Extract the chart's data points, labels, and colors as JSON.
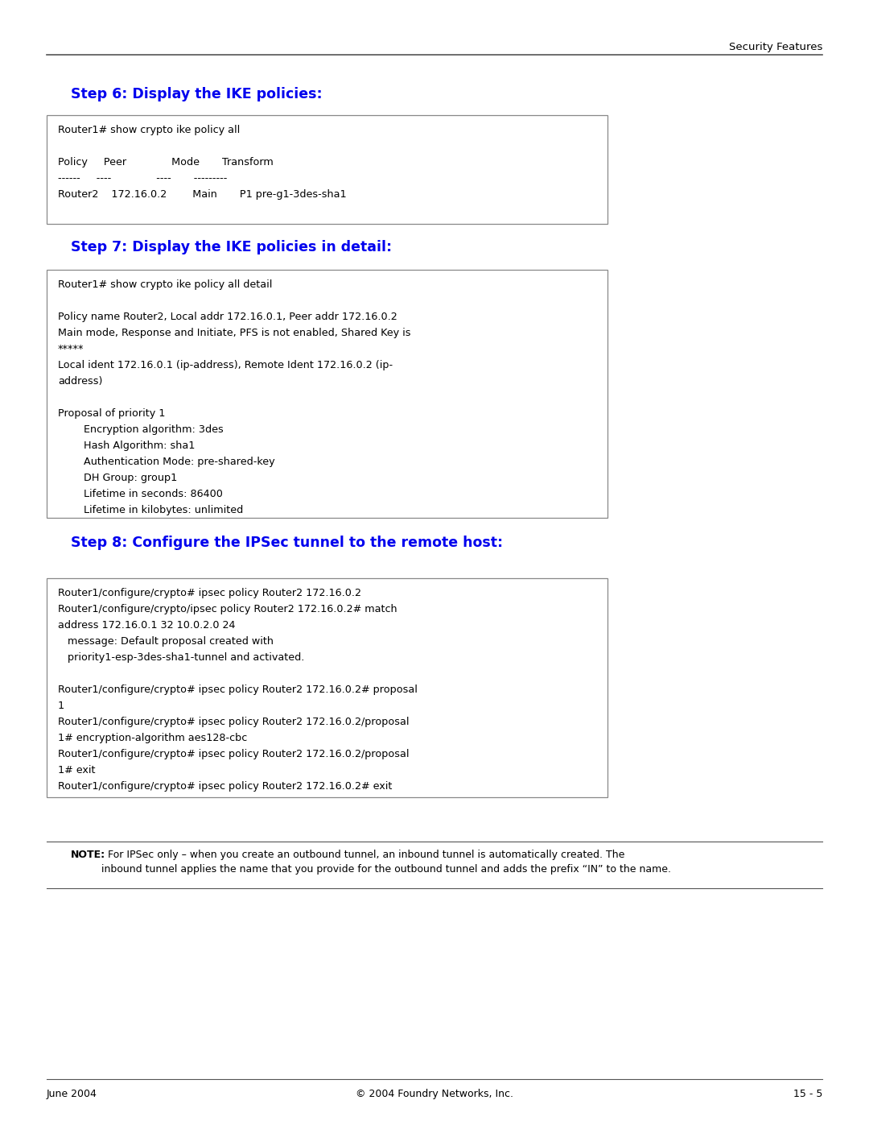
{
  "header_right": "Security Features",
  "step6_title": "Step 6: Display the IKE policies:",
  "step7_title": "Step 7: Display the IKE policies in detail:",
  "step8_title": "Step 8: Configure the IPSec tunnel to the remote host:",
  "step6_code": "Router1# show crypto ike policy all\n\nPolicy     Peer              Mode       Transform\n------     ----              ----       ---------\nRouter2    172.16.0.2        Main       P1 pre-g1-3des-sha1",
  "step7_code": "Router1# show crypto ike policy all detail\n\nPolicy name Router2, Local addr 172.16.0.1, Peer addr 172.16.0.2\nMain mode, Response and Initiate, PFS is not enabled, Shared Key is\n*****\nLocal ident 172.16.0.1 (ip-address), Remote Ident 172.16.0.2 (ip-\naddress)\n\nProposal of priority 1\n        Encryption algorithm: 3des\n        Hash Algorithm: sha1\n        Authentication Mode: pre-shared-key\n        DH Group: group1\n        Lifetime in seconds: 86400\n        Lifetime in kilobytes: unlimited",
  "step8_code": "Router1/configure/crypto# ipsec policy Router2 172.16.0.2\nRouter1/configure/crypto/ipsec policy Router2 172.16.0.2# match\naddress 172.16.0.1 32 10.0.2.0 24\n   message: Default proposal created with\n   priority1-esp-3des-sha1-tunnel and activated.\n\nRouter1/configure/crypto# ipsec policy Router2 172.16.0.2# proposal\n1\nRouter1/configure/crypto# ipsec policy Router2 172.16.0.2/proposal\n1# encryption-algorithm aes128-cbc\nRouter1/configure/crypto# ipsec policy Router2 172.16.0.2/proposal\n1# exit\nRouter1/configure/crypto# ipsec policy Router2 172.16.0.2# exit",
  "note_bold": "NOTE:",
  "note_normal": "  For IPSec only – when you create an outbound tunnel, an inbound tunnel is automatically created. The\ninbound tunnel applies the name that you provide for the outbound tunnel and adds the prefix “IN” to the name.",
  "footer_left": "June 2004",
  "footer_center": "© 2004 Foundry Networks, Inc.",
  "footer_right": "15 - 5",
  "title_color": "#0000EE",
  "code_bg": "#FFFFFF",
  "code_border": "#888888",
  "page_bg": "#FFFFFF",
  "text_color": "#000000",
  "line_color": "#555555"
}
